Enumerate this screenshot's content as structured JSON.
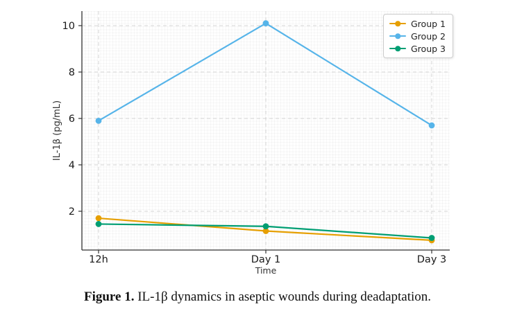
{
  "figure": {
    "caption_label": "Figure 1.",
    "caption_text": " IL-1β dynamics in aseptic wounds during deadaptation."
  },
  "chart_data": {
    "type": "line",
    "title": "",
    "xlabel": "Time",
    "ylabel": "IL-1β (pg/mL)",
    "categories": [
      "12h",
      "Day 1",
      "Day 3"
    ],
    "yticks": [
      2,
      4,
      6,
      8,
      10
    ],
    "ylim": [
      0.35,
      10.65
    ],
    "grid": true,
    "grid_style": "dashed",
    "legend_position": "top-right",
    "series": [
      {
        "name": "Group 1",
        "color": "#E69F00",
        "values": [
          1.7,
          1.15,
          0.75
        ]
      },
      {
        "name": "Group 2",
        "color": "#56B4E9",
        "values": [
          5.9,
          10.1,
          5.7
        ]
      },
      {
        "name": "Group 3",
        "color": "#009E73",
        "values": [
          1.45,
          1.35,
          0.85
        ]
      }
    ],
    "colors": {
      "axis": "#333333",
      "gridline": "#d4d4d4",
      "tick_text": "#1a1a1a",
      "axis_title_text": "#333333"
    }
  }
}
